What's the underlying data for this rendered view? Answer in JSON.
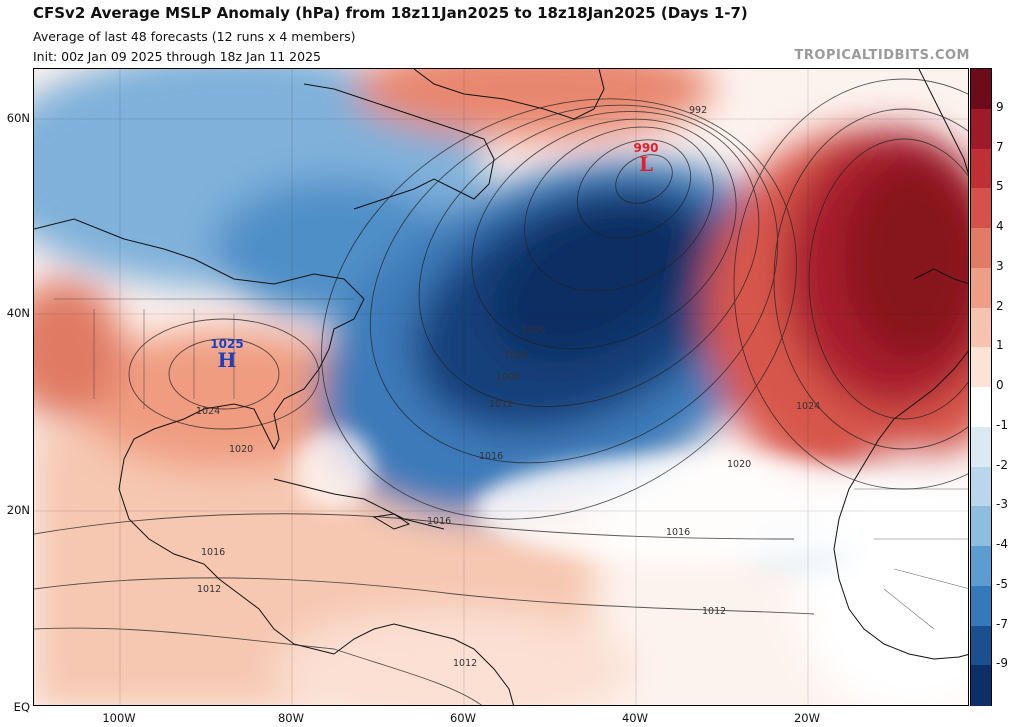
{
  "title": "CFSv2 Average MSLP Anomaly (hPa) from 18z11Jan2025 to 18z18Jan2025 (Days 1-7)",
  "subtitle1": "Average of last 48 forecasts (12 runs x 4 members)",
  "subtitle2": "Init: 00z Jan 09 2025 through 18z Jan 11 2025",
  "brand": "TROPICALTIDBITS.COM",
  "lat_labels": [
    "60N",
    "40N",
    "20N",
    "EQ"
  ],
  "lon_labels": [
    "100W",
    "80W",
    "60W",
    "40W",
    "20W"
  ],
  "colorbar": {
    "labels": [
      "9",
      "7",
      "5",
      "4",
      "3",
      "2",
      "1",
      "0",
      "-1",
      "-2",
      "-3",
      "-4",
      "-5",
      "-7",
      "-9"
    ],
    "colors": [
      "#6e0b1a",
      "#9e1a2a",
      "#bf3035",
      "#d4524a",
      "#e37a66",
      "#ee9e86",
      "#f6c3ae",
      "#fbe3d6",
      "#ffffff",
      "#dbe9f4",
      "#b9d6ea",
      "#8ebde0",
      "#5c9cd0",
      "#3778b8",
      "#1b4f90",
      "#0b2f66"
    ]
  },
  "high": {
    "value": "1025",
    "letter": "H",
    "color": "#1f3fbf"
  },
  "low": {
    "value": "990",
    "letter": "L",
    "color": "#e0202a"
  },
  "contour_labels": [
    "992",
    "1000",
    "1004",
    "1008",
    "1012",
    "1016",
    "1020",
    "1024",
    "1016",
    "1016",
    "1012",
    "1012",
    "1024",
    "1020",
    "1016",
    "1012"
  ]
}
